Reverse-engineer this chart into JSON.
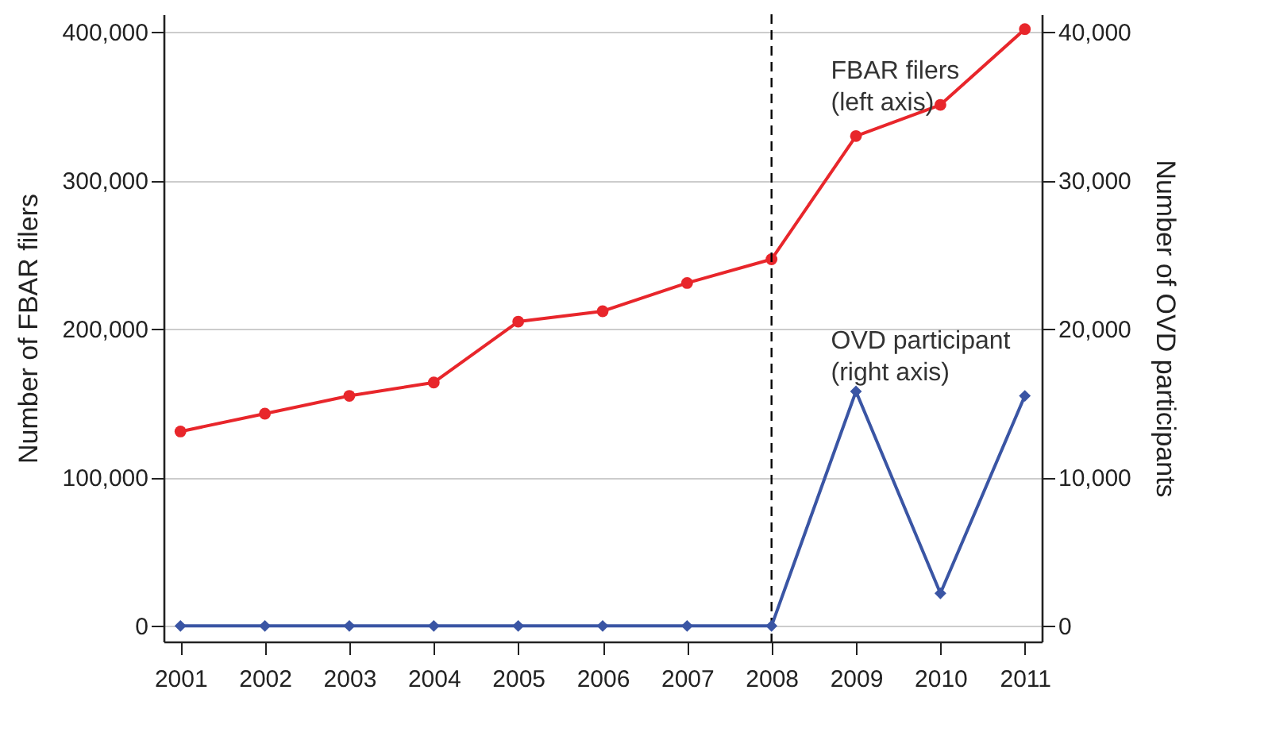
{
  "chart_data": {
    "type": "line",
    "xlabel": null,
    "ylabel": "Number of FBAR filers",
    "y2label": "Number of OVD participants",
    "x": [
      2001,
      2002,
      2003,
      2004,
      2005,
      2006,
      2007,
      2008,
      2009,
      2010,
      2011
    ],
    "series": [
      {
        "name": "FBAR filers\n(left axis)",
        "color": "#e8262b",
        "marker": "circle",
        "values": [
          131000,
          143000,
          155000,
          164000,
          205000,
          212000,
          231000,
          247000,
          330000,
          351000,
          402000
        ]
      },
      {
        "name": "OVD participant\n(right axis)",
        "color": "#3a55a4",
        "marker": "diamond",
        "axis": "y2",
        "values": [
          0,
          0,
          0,
          0,
          0,
          0,
          0,
          0,
          15800,
          2200,
          15500
        ]
      }
    ],
    "xlim": [
      2000.8,
      2011.2
    ],
    "xticks": [
      2001,
      2002,
      2003,
      2004,
      2005,
      2006,
      2007,
      2008,
      2009,
      2010,
      2011
    ],
    "ylim": [
      -10500,
      412000
    ],
    "yticks": [
      0,
      {
        "value": 100000,
        "label": "100,000"
      },
      {
        "value": 200000,
        "label": "200,000"
      },
      {
        "value": 300000,
        "label": "300,000"
      },
      {
        "value": 400000,
        "label": "400,000"
      }
    ],
    "y2lim": [
      -1050,
      41200
    ],
    "y2ticks": [
      0,
      {
        "value": 10000,
        "label": "10,000"
      },
      {
        "value": 20000,
        "label": "20,000"
      },
      {
        "value": 30000,
        "label": "30,000"
      },
      {
        "value": 40000,
        "label": "40,000"
      }
    ],
    "ref_lines": [
      {
        "axis": "x",
        "value": 2008,
        "label": null,
        "color": "#000000",
        "line_style": "dashed"
      }
    ],
    "grid": "y",
    "line_style": "solid"
  }
}
